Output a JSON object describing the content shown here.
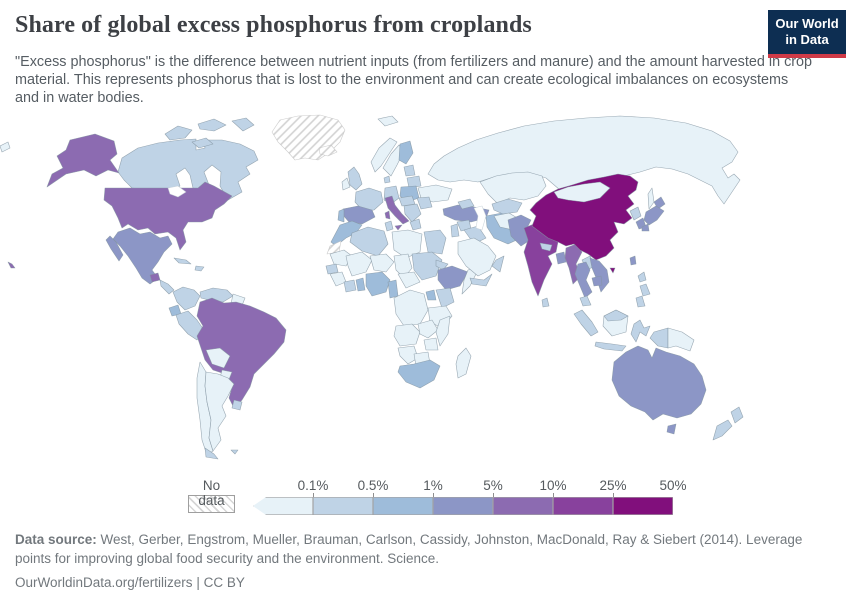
{
  "header": {
    "title": "Share of global excess phosphorus from croplands",
    "subtitle": "\"Excess phosphorus\" is the difference between nutrient inputs (from fertilizers and manure) and the amount harvested in crop material. This represents phosphorus that is lost to the environment and can create ecological imbalances on ecosystems and in water bodies.",
    "logo": {
      "line1": "Our World",
      "line2": "in Data",
      "background": "#0d2e52",
      "accent": "#cf3a47"
    }
  },
  "legend": {
    "no_data_label": "No data",
    "buckets": [
      {
        "max_label": "0.1%",
        "color": "#e7f2f8"
      },
      {
        "max_label": "0.5%",
        "color": "#bfd3e6"
      },
      {
        "max_label": "1%",
        "color": "#9ebcda"
      },
      {
        "max_label": "5%",
        "color": "#8c96c6"
      },
      {
        "max_label": "10%",
        "color": "#8c6bb1"
      },
      {
        "max_label": "25%",
        "color": "#88419d"
      },
      {
        "max_label": "50%",
        "color": "#810f7c"
      }
    ]
  },
  "footer": {
    "datasource_label": "Data source:",
    "datasource_text": " West, Gerber, Engstrom, Mueller, Brauman, Carlson, Cassidy, Johnston, MacDonald, Ray & Siebert (2014). Leverage points for improving global food security and the environment. Science.",
    "link": "OurWorldinData.org/fertilizers",
    "separator": "|",
    "license": "CC BY"
  },
  "map": {
    "stroke": "#8395a1",
    "no_data_stroke": "#c0c0c0",
    "regions": {
      "russia": 0,
      "chukotka": 0,
      "svalbard": 0,
      "sakhalin": 0,
      "kazakhstan": 0,
      "mongolia": 0,
      "norway": 0,
      "sweden": 0,
      "ireland": 0,
      "ukraine": 0,
      "libya": 0,
      "mauritania": 0,
      "mali": 0,
      "niger": 0,
      "chad": 0,
      "somalia": 0,
      "guinea": 0,
      "car": 0,
      "drc": 0,
      "tanzania": 0,
      "angola": 0,
      "zambia": 0,
      "mozambique": 0,
      "zimbabwe": 0,
      "namibia": 0,
      "botswana": 0,
      "madagascar": 0,
      "saudi-arabia": 0,
      "afghanistan": 0,
      "guyanas": 0,
      "bolivia": 0,
      "paraguay": 0,
      "chile": 0,
      "argentina": 0,
      "borneo": 0,
      "papua-new-guinea": 0,
      "canada": 1,
      "canadian-arctic": 1,
      "uk": 1,
      "denmark": 1,
      "germany": 1,
      "france": 1,
      "belarus": 1,
      "baltics": 1,
      "central-europe": 1,
      "balkans": 1,
      "greece": 1,
      "romania": 1,
      "algeria": 1,
      "tunisia": 1,
      "egypt": 1,
      "sudan": 1,
      "eritrea": 1,
      "senegal": 1,
      "ivory-coast": 1,
      "kenya": 1,
      "yemen": 1,
      "oman": 1,
      "levant": 1,
      "syria": 1,
      "iraq": 1,
      "caucasus": 1,
      "uzbekistan-turkmenistan": 1,
      "nepal": 1,
      "sri-lanka": 1,
      "laos": 1,
      "malaysia": 1,
      "philippines": 1,
      "sumatra": 1,
      "java": 1,
      "borneo-north": 1,
      "sulawesi": 1,
      "west-papua": 1,
      "new-zealand": 1,
      "cuba": 1,
      "hispaniola": 1,
      "colombia": 1,
      "venezuela": 1,
      "peru": 1,
      "uruguay": 1,
      "central-america": 1,
      "chile-south": 1,
      "falklands": 1,
      "north-korea": 1,
      "finland": 2,
      "poland": 2,
      "portugal": 2,
      "morocco": 2,
      "ghana": 2,
      "nigeria": 2,
      "cameroon": 2,
      "uganda": 2,
      "south-africa": 2,
      "ecuador": 2,
      "iran": 2,
      "spain": 3,
      "turkey": 3,
      "pakistan": 3,
      "bangladesh": 3,
      "thailand": 3,
      "vietnam": 3,
      "cambodia": 3,
      "japan": 3,
      "south-korea": 3,
      "taiwan": 3,
      "ethiopia": 3,
      "mexico": 3,
      "australia": 3,
      "tasmania": 3,
      "usa": 4,
      "alaska": 4,
      "hawaii": 4,
      "brazil": 4,
      "italy": 4,
      "sicily": 4,
      "sardinia": 4,
      "myanmar": 4,
      "guatemala": 4,
      "india": 5,
      "china": 6,
      "hainan": 6,
      "greenland": "no_data",
      "iceland": "no_data",
      "western-sahara": "no_data"
    }
  },
  "chart_data": {
    "type": "choropleth_map",
    "title": "Share of global excess phosphorus from croplands",
    "unit": "% of global excess phosphorus",
    "legend_position": "bottom",
    "color_scale": {
      "bin_edges_percent": [
        0.1,
        0.5,
        1,
        5,
        10,
        25,
        50
      ],
      "colors": [
        "#e7f2f8",
        "#bfd3e6",
        "#9ebcda",
        "#8c96c6",
        "#8c6bb1",
        "#88419d",
        "#810f7c"
      ],
      "no_data_hatched": true
    },
    "observations": [
      {
        "entity": "China",
        "bin": "25-50%"
      },
      {
        "entity": "India",
        "bin": "10-25%"
      },
      {
        "entity": "United States",
        "bin": "5-10%"
      },
      {
        "entity": "Brazil",
        "bin": "5-10%"
      },
      {
        "entity": "Italy",
        "bin": "5-10%"
      },
      {
        "entity": "Myanmar",
        "bin": "5-10%"
      },
      {
        "entity": "Guatemala",
        "bin": "5-10%"
      },
      {
        "entity": "Australia",
        "bin": "1-5%"
      },
      {
        "entity": "Mexico",
        "bin": "1-5%"
      },
      {
        "entity": "Spain",
        "bin": "1-5%"
      },
      {
        "entity": "Turkey",
        "bin": "1-5%"
      },
      {
        "entity": "Pakistan",
        "bin": "1-5%"
      },
      {
        "entity": "Bangladesh",
        "bin": "1-5%"
      },
      {
        "entity": "Thailand",
        "bin": "1-5%"
      },
      {
        "entity": "Vietnam",
        "bin": "1-5%"
      },
      {
        "entity": "Japan",
        "bin": "1-5%"
      },
      {
        "entity": "South Korea",
        "bin": "1-5%"
      },
      {
        "entity": "Ethiopia",
        "bin": "1-5%"
      },
      {
        "entity": "Poland",
        "bin": "0.5-1%"
      },
      {
        "entity": "Finland",
        "bin": "0.5-1%"
      },
      {
        "entity": "Iran",
        "bin": "0.5-1%"
      },
      {
        "entity": "Morocco",
        "bin": "0.5-1%"
      },
      {
        "entity": "Nigeria",
        "bin": "0.5-1%"
      },
      {
        "entity": "South Africa",
        "bin": "0.5-1%"
      },
      {
        "entity": "Ecuador",
        "bin": "0.5-1%"
      },
      {
        "entity": "Canada",
        "bin": "0.1-0.5%"
      },
      {
        "entity": "United Kingdom",
        "bin": "0.1-0.5%"
      },
      {
        "entity": "France",
        "bin": "0.1-0.5%"
      },
      {
        "entity": "Germany",
        "bin": "0.1-0.5%"
      },
      {
        "entity": "Colombia",
        "bin": "0.1-0.5%"
      },
      {
        "entity": "Venezuela",
        "bin": "0.1-0.5%"
      },
      {
        "entity": "Peru",
        "bin": "0.1-0.5%"
      },
      {
        "entity": "Uruguay",
        "bin": "0.1-0.5%"
      },
      {
        "entity": "Egypt",
        "bin": "0.1-0.5%"
      },
      {
        "entity": "Algeria",
        "bin": "0.1-0.5%"
      },
      {
        "entity": "Sudan",
        "bin": "0.1-0.5%"
      },
      {
        "entity": "Kenya",
        "bin": "0.1-0.5%"
      },
      {
        "entity": "Indonesia",
        "bin": "0.1-0.5%"
      },
      {
        "entity": "Philippines",
        "bin": "0.1-0.5%"
      },
      {
        "entity": "New Zealand",
        "bin": "0.1-0.5%"
      },
      {
        "entity": "Russia",
        "bin": "<0.1%"
      },
      {
        "entity": "Kazakhstan",
        "bin": "<0.1%"
      },
      {
        "entity": "Mongolia",
        "bin": "<0.1%"
      },
      {
        "entity": "Argentina",
        "bin": "<0.1%"
      },
      {
        "entity": "Chile",
        "bin": "<0.1%"
      },
      {
        "entity": "Bolivia",
        "bin": "<0.1%"
      },
      {
        "entity": "Paraguay",
        "bin": "<0.1%"
      },
      {
        "entity": "Saudi Arabia",
        "bin": "<0.1%"
      },
      {
        "entity": "Libya",
        "bin": "<0.1%"
      },
      {
        "entity": "DR Congo",
        "bin": "<0.1%"
      },
      {
        "entity": "Tanzania",
        "bin": "<0.1%"
      },
      {
        "entity": "Angola",
        "bin": "<0.1%"
      },
      {
        "entity": "Madagascar",
        "bin": "<0.1%"
      },
      {
        "entity": "Norway",
        "bin": "<0.1%"
      },
      {
        "entity": "Sweden",
        "bin": "<0.1%"
      },
      {
        "entity": "Ukraine",
        "bin": "<0.1%"
      },
      {
        "entity": "Papua New Guinea",
        "bin": "<0.1%"
      },
      {
        "entity": "Greenland",
        "bin": "No data"
      },
      {
        "entity": "Iceland",
        "bin": "No data"
      },
      {
        "entity": "Western Sahara",
        "bin": "No data"
      }
    ]
  }
}
